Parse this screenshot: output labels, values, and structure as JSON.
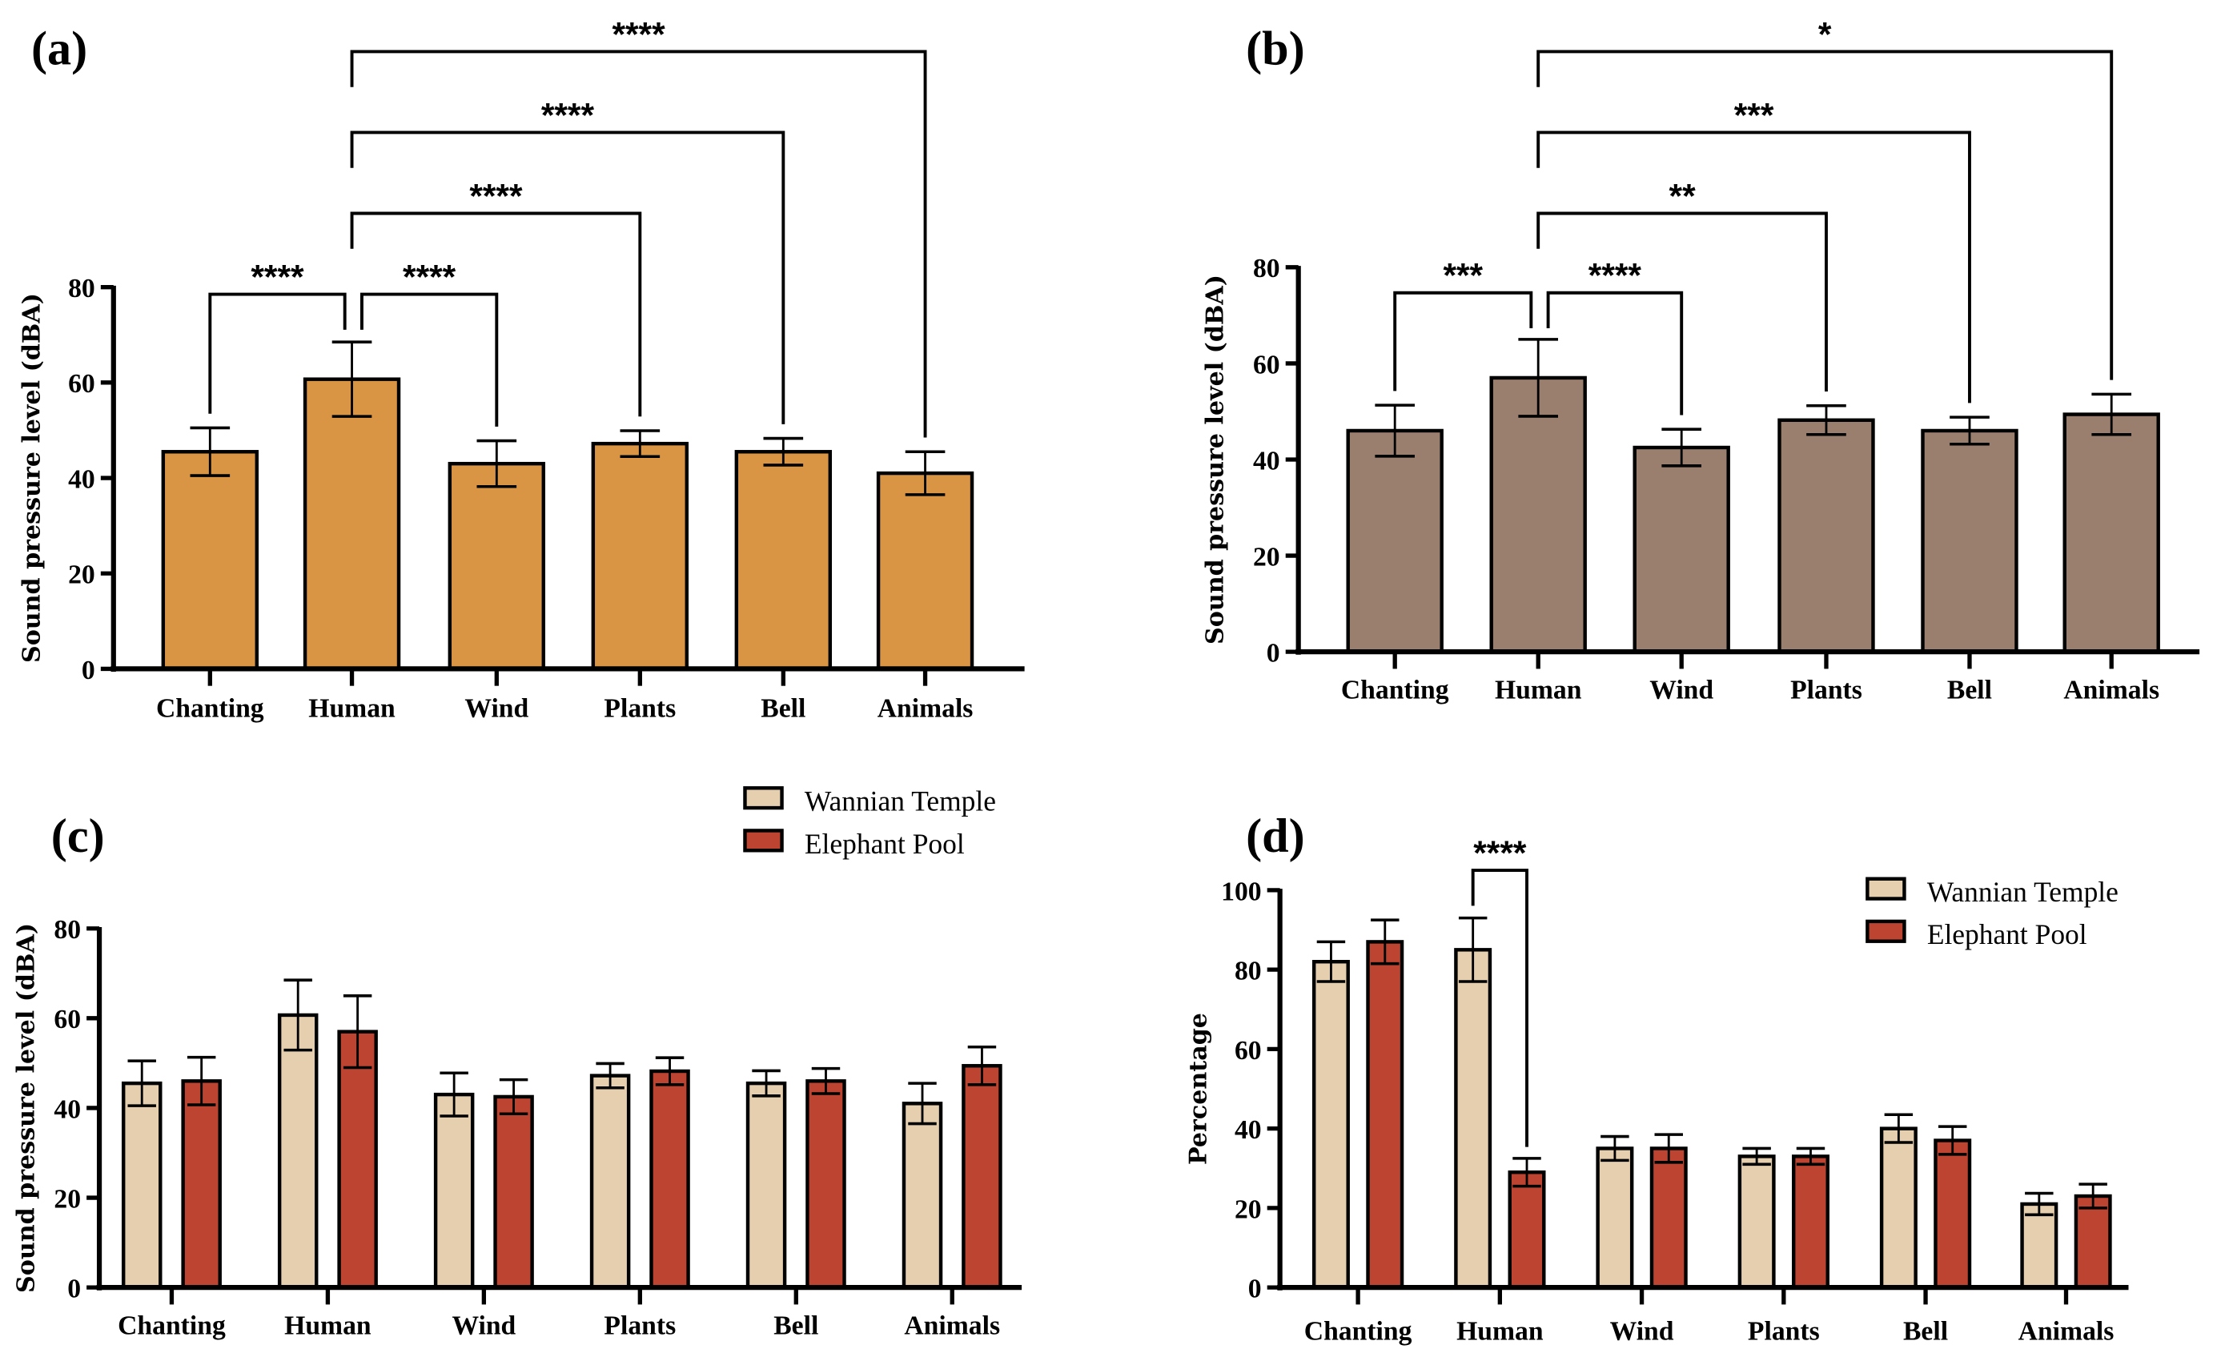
{
  "colors": {
    "orange": "#D99444",
    "brown": "#9B7F6E",
    "wannian": "#E6CFAE",
    "elephant": "#BD4431",
    "axis": "#000000"
  },
  "chart_data": [
    {
      "panel": "(a)",
      "type": "bar",
      "categories": [
        "Chanting",
        "Human",
        "Wind",
        "Plants",
        "Bell",
        "Animals"
      ],
      "ylabel": "Sound pressure level (dBA)",
      "ylim": [
        0,
        80
      ],
      "yticks": [
        "0",
        "20",
        "40",
        "60",
        "80"
      ],
      "series": [
        {
          "name": "Wannian Temple",
          "color": "#D99444",
          "values": [
            45.5,
            60.7,
            43.0,
            47.2,
            45.5,
            41.0
          ],
          "errors": [
            5.0,
            7.8,
            4.8,
            2.7,
            2.8,
            4.5
          ]
        }
      ],
      "comparisons": [
        {
          "from": "Human",
          "to": "Chanting",
          "label": "****"
        },
        {
          "from": "Human",
          "to": "Wind",
          "label": "****"
        },
        {
          "from": "Human",
          "to": "Plants",
          "label": "****"
        },
        {
          "from": "Human",
          "to": "Bell",
          "label": "****"
        },
        {
          "from": "Human",
          "to": "Animals",
          "label": "****"
        }
      ],
      "legend": null
    },
    {
      "panel": "(b)",
      "type": "bar",
      "categories": [
        "Chanting",
        "Human",
        "Wind",
        "Plants",
        "Bell",
        "Animals"
      ],
      "ylabel": "Sound pressure level (dBA)",
      "ylim": [
        0,
        80
      ],
      "yticks": [
        "0",
        "20",
        "40",
        "60",
        "80"
      ],
      "series": [
        {
          "name": "Elephant Pool",
          "color": "#9B7F6E",
          "values": [
            46.0,
            57.0,
            42.5,
            48.2,
            46.0,
            49.4
          ],
          "errors": [
            5.3,
            8.0,
            3.8,
            3.0,
            2.8,
            4.2
          ]
        }
      ],
      "comparisons": [
        {
          "from": "Human",
          "to": "Chanting",
          "label": "***"
        },
        {
          "from": "Human",
          "to": "Wind",
          "label": "****"
        },
        {
          "from": "Human",
          "to": "Plants",
          "label": "**"
        },
        {
          "from": "Human",
          "to": "Bell",
          "label": "***"
        },
        {
          "from": "Human",
          "to": "Animals",
          "label": "*"
        }
      ],
      "legend": null
    },
    {
      "panel": "(c)",
      "type": "bar",
      "categories": [
        "Chanting",
        "Human",
        "Wind",
        "Plants",
        "Bell",
        "Animals"
      ],
      "ylabel": "Sound pressure level (dBA)",
      "ylim": [
        0,
        80
      ],
      "yticks": [
        "0",
        "20",
        "40",
        "60",
        "80"
      ],
      "series": [
        {
          "name": "Wannian Temple",
          "color": "#E6CFAE",
          "values": [
            45.5,
            60.7,
            43.0,
            47.2,
            45.5,
            41.0
          ],
          "errors": [
            5.0,
            7.8,
            4.8,
            2.7,
            2.8,
            4.5
          ]
        },
        {
          "name": "Elephant Pool",
          "color": "#BD4431",
          "values": [
            46.0,
            57.0,
            42.5,
            48.2,
            46.0,
            49.4
          ],
          "errors": [
            5.3,
            8.0,
            3.8,
            3.0,
            2.8,
            4.2
          ]
        }
      ],
      "comparisons": [],
      "legend": "top-right"
    },
    {
      "panel": "(d)",
      "type": "bar",
      "categories": [
        "Chanting",
        "Human",
        "Wind",
        "Plants",
        "Bell",
        "Animals"
      ],
      "ylabel": "Percentage",
      "ylim": [
        0,
        100
      ],
      "yticks": [
        "0",
        "20",
        "40",
        "60",
        "80",
        "100"
      ],
      "series": [
        {
          "name": "Wannian Temple",
          "color": "#E6CFAE",
          "values": [
            82,
            85,
            35,
            33,
            40,
            21
          ],
          "errors": [
            5.0,
            8.0,
            3.0,
            2.0,
            3.5,
            2.7
          ]
        },
        {
          "name": "Elephant Pool",
          "color": "#BD4431",
          "values": [
            87,
            29,
            35,
            33,
            37,
            23
          ],
          "errors": [
            5.5,
            3.5,
            3.5,
            2.0,
            3.5,
            3.0
          ]
        }
      ],
      "comparisons": [
        {
          "group": "Human",
          "from": "Wannian Temple",
          "to": "Elephant Pool",
          "label": "****"
        }
      ],
      "legend": "top-right"
    }
  ]
}
